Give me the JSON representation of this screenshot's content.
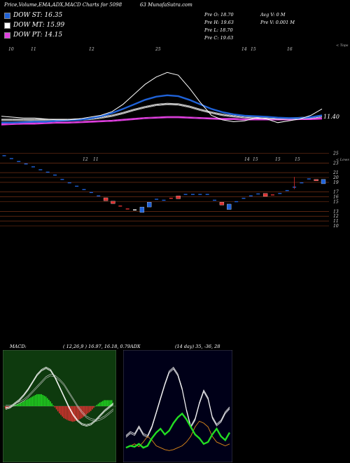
{
  "header": {
    "title": "Price,Volume,EMA,ADX,MACD Charts for 5098",
    "site": "63 MunafaSutra.com"
  },
  "legend": [
    {
      "label": "DOW ST: 16.35",
      "color": "#1f62d8"
    },
    {
      "label": "DOW MT: 15.99",
      "color": "#ffffff"
    },
    {
      "label": "DOW PT: 14.15",
      "color": "#e040e0"
    }
  ],
  "stats": {
    "prev_open": "Pre   O: 18.70",
    "prev_high": "Pre   H: 19.63",
    "prev_low": "Pre   L: 18.70",
    "prev_close": "Pre   C: 19.63",
    "avg_vol": "Avg V: 0   M",
    "prev_vol": "Pre   V: 0.001 M"
  },
  "chart_data": [
    {
      "type": "line",
      "name": "price-ema",
      "top_ticks": [
        "10",
        "11",
        "12",
        "25",
        "14",
        "15",
        "16"
      ],
      "top_label": "< Tops",
      "bottom_ticks": [
        "12",
        "11",
        "14",
        "15",
        "15",
        "15"
      ],
      "bottom_label": "< Lows",
      "price_label": "11.40",
      "colors": {
        "price": "#ffffff",
        "ema_short": "#1f62d8",
        "ema_mid": "#ffffff",
        "ema_long": "#e040e0"
      },
      "price": [
        12.5,
        12.4,
        12.3,
        12.3,
        12.2,
        12.1,
        12.1,
        12.2,
        12.4,
        12.6,
        13.0,
        13.8,
        14.9,
        16.0,
        16.8,
        17.3,
        17.0,
        15.6,
        14.0,
        12.6,
        12.1,
        11.9,
        12.0,
        12.3,
        12.2,
        11.8,
        12.0,
        12.2,
        12.6,
        13.3
      ],
      "ema_short": [
        11.8,
        11.8,
        11.85,
        11.9,
        11.9,
        12.0,
        12.05,
        12.1,
        12.25,
        12.5,
        12.85,
        13.3,
        13.8,
        14.3,
        14.65,
        14.8,
        14.7,
        14.3,
        13.8,
        13.3,
        12.95,
        12.7,
        12.55,
        12.5,
        12.45,
        12.35,
        12.3,
        12.3,
        12.4,
        12.6
      ],
      "ema_mid": [
        12.1,
        12.1,
        12.1,
        12.1,
        12.1,
        12.1,
        12.1,
        12.15,
        12.2,
        12.35,
        12.55,
        12.85,
        13.2,
        13.5,
        13.75,
        13.85,
        13.8,
        13.55,
        13.2,
        12.9,
        12.65,
        12.5,
        12.4,
        12.35,
        12.3,
        12.25,
        12.25,
        12.3,
        12.35,
        12.5
      ],
      "ema_long": [
        11.6,
        11.65,
        11.7,
        11.7,
        11.75,
        11.8,
        11.8,
        11.85,
        11.9,
        11.95,
        12.0,
        12.1,
        12.2,
        12.3,
        12.35,
        12.4,
        12.4,
        12.35,
        12.3,
        12.25,
        12.2,
        12.2,
        12.15,
        12.15,
        12.15,
        12.15,
        12.15,
        12.2,
        12.2,
        12.25
      ]
    },
    {
      "type": "candlestick",
      "name": "price-levels",
      "levels": [
        25,
        23,
        21,
        20,
        19,
        17,
        16,
        15,
        13,
        12,
        11,
        10
      ],
      "ylim": [
        9,
        26
      ],
      "candles": [
        {
          "o": 24.6,
          "c": 24.6,
          "color": "#1f62d8"
        },
        {
          "o": 24.0,
          "c": 24.0,
          "color": "#1f62d8"
        },
        {
          "o": 23.4,
          "c": 23.4,
          "color": "#1f62d8"
        },
        {
          "o": 22.9,
          "c": 22.9,
          "color": "#1f62d8"
        },
        {
          "o": 22.3,
          "c": 22.3,
          "color": "#1f62d8"
        },
        {
          "o": 21.7,
          "c": 21.7,
          "color": "#1f62d8"
        },
        {
          "o": 21.2,
          "c": 21.2,
          "color": "#1f62d8"
        },
        {
          "o": 20.6,
          "c": 20.6,
          "color": "#1f62d8"
        },
        {
          "o": 19.7,
          "c": 19.7,
          "color": "#1f62d8"
        },
        {
          "o": 19.0,
          "c": 19.0,
          "color": "#1f62d8"
        },
        {
          "o": 18.3,
          "c": 18.3,
          "color": "#1f62d8"
        },
        {
          "o": 17.6,
          "c": 17.6,
          "color": "#1f62d8"
        },
        {
          "o": 17.0,
          "c": 17.0,
          "color": "#1f62d8"
        },
        {
          "o": 16.3,
          "c": 16.3,
          "color": "#1f62d8"
        },
        {
          "o": 15.8,
          "c": 15.2,
          "color": "#e03030"
        },
        {
          "o": 15.1,
          "c": 14.6,
          "color": "#e03030"
        },
        {
          "o": 14.2,
          "c": 14.2,
          "color": "#e03030"
        },
        {
          "o": 13.6,
          "c": 13.6,
          "color": "#e03030"
        },
        {
          "o": 13.4,
          "c": 13.4,
          "color": "#ffffff"
        },
        {
          "o": 12.8,
          "c": 13.9,
          "color": "#1f62d8"
        },
        {
          "o": 13.9,
          "c": 14.9,
          "color": "#1f62d8"
        },
        {
          "o": 15.6,
          "c": 15.6,
          "color": "#1f62d8"
        },
        {
          "o": 15.4,
          "c": 15.4,
          "color": "#1f62d8"
        },
        {
          "o": 15.8,
          "c": 15.8,
          "color": "#e03030"
        },
        {
          "o": 16.2,
          "c": 15.6,
          "color": "#e03030"
        },
        {
          "o": 16.6,
          "c": 16.6,
          "color": "#1f62d8"
        },
        {
          "o": 16.6,
          "c": 16.6,
          "color": "#1f62d8"
        },
        {
          "o": 16.6,
          "c": 16.6,
          "color": "#1f62d8"
        },
        {
          "o": 16.6,
          "c": 16.6,
          "color": "#1f62d8"
        },
        {
          "o": 15.4,
          "c": 15.4,
          "color": "#1f62d8"
        },
        {
          "o": 14.9,
          "c": 14.3,
          "color": "#e03030"
        },
        {
          "o": 13.4,
          "c": 14.5,
          "color": "#1f62d8"
        },
        {
          "o": 15.1,
          "c": 15.1,
          "color": "#1f62d8"
        },
        {
          "o": 15.8,
          "c": 15.8,
          "color": "#1f62d8"
        },
        {
          "o": 16.3,
          "c": 16.3,
          "color": "#1f62d8"
        },
        {
          "o": 16.7,
          "c": 16.7,
          "color": "#1f62d8"
        },
        {
          "o": 16.7,
          "c": 16.1,
          "color": "#e03030"
        },
        {
          "o": 16.5,
          "c": 16.5,
          "color": "#e03030"
        },
        {
          "o": 16.8,
          "c": 16.8,
          "color": "#1f62d8"
        },
        {
          "o": 17.4,
          "c": 17.4,
          "color": "#1f62d8"
        },
        {
          "o": 18.1,
          "c": 18.1,
          "color": "#1f62d8"
        },
        {
          "o": 19.0,
          "c": 19.0,
          "color": "#1f62d8"
        },
        {
          "o": 19.8,
          "c": 19.8,
          "color": "#1f62d8"
        },
        {
          "o": 19.6,
          "c": 19.3,
          "color": "#e03030"
        },
        {
          "o": 18.7,
          "c": 19.6,
          "color": "#1f62d8"
        }
      ]
    },
    {
      "type": "line",
      "name": "macd",
      "title": "MACD:",
      "params": "( 12,26,9 ) 16.97,  16.18,  0.79",
      "colors": {
        "line": "#ffffff",
        "positive": "#22dd22",
        "negative": "#e03030"
      },
      "macd": [
        -0.2,
        -0.1,
        0.2,
        0.5,
        0.9,
        1.4,
        2.0,
        2.6,
        3.0,
        3.2,
        3.0,
        2.4,
        1.6,
        0.8,
        0.0,
        -0.7,
        -1.2,
        -1.5,
        -1.6,
        -1.5,
        -1.2,
        -0.8,
        -0.4,
        -0.1,
        0.2
      ],
      "signal": [
        0.0,
        0.0,
        0.1,
        0.3,
        0.5,
        0.8,
        1.2,
        1.6,
        2.0,
        2.4,
        2.6,
        2.5,
        2.2,
        1.8,
        1.2,
        0.6,
        0.0,
        -0.5,
        -0.9,
        -1.1,
        -1.2,
        -1.1,
        -0.9,
        -0.6,
        -0.3
      ],
      "histogram": [
        -0.2,
        -0.1,
        0.1,
        0.2,
        0.4,
        0.6,
        0.8,
        1.0,
        1.0,
        0.8,
        0.4,
        -0.1,
        -0.6,
        -1.0,
        -1.2,
        -1.3,
        -1.2,
        -1.0,
        -0.7,
        -0.4,
        0.0,
        0.3,
        0.5,
        0.5,
        0.5
      ],
      "ylim": [
        -4,
        4
      ]
    },
    {
      "type": "line",
      "name": "adx",
      "title": "ADX",
      "params": "(14 day) 35,  -36,  28",
      "colors": {
        "adx": "#ffffff",
        "plus_di": "#22dd22",
        "minus_di": "#e08a1a"
      },
      "adx": [
        20,
        24,
        22,
        30,
        22,
        20,
        30,
        45,
        60,
        75,
        88,
        92,
        85,
        70,
        48,
        30,
        38,
        55,
        68,
        60,
        40,
        32,
        36,
        45,
        50
      ],
      "plus_di": [
        8,
        10,
        9,
        12,
        8,
        10,
        18,
        24,
        28,
        22,
        26,
        34,
        40,
        44,
        38,
        30,
        22,
        18,
        12,
        14,
        22,
        28,
        20,
        16,
        24
      ],
      "minus_di": [
        8,
        10,
        12,
        9,
        14,
        20,
        16,
        10,
        8,
        6,
        5,
        6,
        8,
        10,
        14,
        20,
        30,
        36,
        34,
        30,
        20,
        14,
        12,
        10,
        12
      ],
      "ylim": [
        0,
        100
      ]
    }
  ]
}
